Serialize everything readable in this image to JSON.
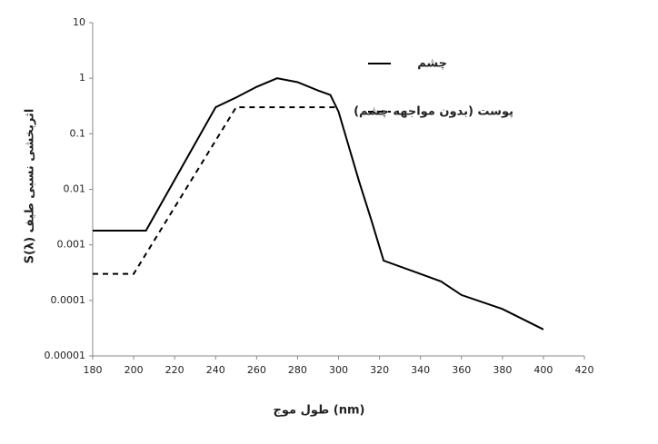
{
  "chart_data": {
    "type": "line",
    "x_label": "طول موج (nm)",
    "y_label": "اثربخشی نسبی طیف S(λ)",
    "log_y": true,
    "xlim": [
      180,
      420
    ],
    "xticks": [
      180,
      200,
      220,
      240,
      260,
      280,
      300,
      320,
      340,
      360,
      380,
      400,
      420
    ],
    "ylim": [
      1e-05,
      10
    ],
    "yticks": [
      1e-05,
      0.0001,
      0.001,
      0.01,
      0.1,
      1,
      10
    ],
    "series": [
      {
        "name": "چشم",
        "color": "#000000",
        "dash": false,
        "x": [
          180,
          206,
          240,
          250,
          260,
          270,
          280,
          290,
          296,
          300,
          310,
          316,
          322,
          340,
          350,
          360,
          380,
          400
        ],
        "values": [
          0.0018,
          0.0018,
          0.3,
          0.45,
          0.7,
          1.0,
          0.85,
          0.6,
          0.5,
          0.25,
          0.014,
          0.0028,
          0.00052,
          0.0003,
          0.00022,
          0.000125,
          7e-05,
          3e-05
        ]
      },
      {
        "name": "پوست (بدون مواجهه چشم)",
        "color": "#000000",
        "dash": true,
        "x": [
          180,
          200,
          250,
          300
        ],
        "values": [
          0.0003,
          0.0003,
          0.3,
          0.3
        ]
      }
    ]
  }
}
